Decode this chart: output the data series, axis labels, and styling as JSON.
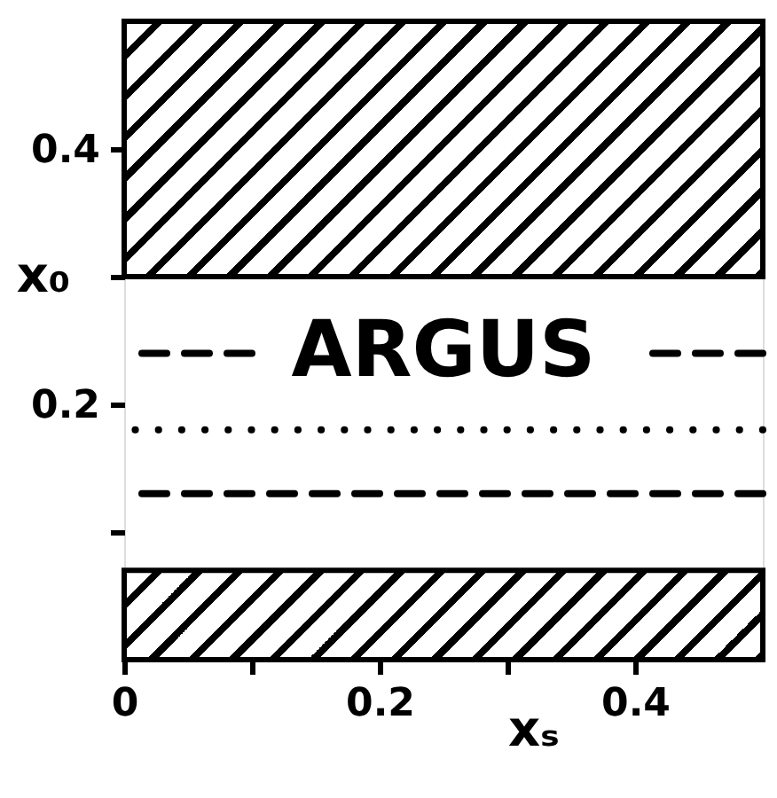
{
  "chart_data": {
    "type": "line",
    "xlabel": "xₛ",
    "ylabel": "x₀",
    "xlim": [
      0,
      0.5
    ],
    "ylim": [
      0,
      0.5
    ],
    "xticks": [
      0,
      {
        "value": 0.1,
        "label": null
      },
      0.2,
      {
        "value": 0.3,
        "label": null
      },
      0.4
    ],
    "yticks": [
      {
        "value": 0.1,
        "label": null
      },
      0.2,
      {
        "value": 0.3,
        "label": null
      },
      0.4
    ],
    "bands": [
      {
        "axis": "y",
        "from": 0.3,
        "to": 0.5,
        "color": "#000000"
      },
      {
        "axis": "y",
        "from": 0,
        "to": 0.07,
        "color": "#000000"
      }
    ],
    "ref_lines": [
      {
        "axis": "y",
        "value": 0.24,
        "label": "ARGUS",
        "line_style": "dashed",
        "color": "#000000"
      },
      {
        "axis": "y",
        "value": 0.18,
        "line_style": "dotted",
        "color": "#000000"
      },
      {
        "axis": "y",
        "value": 0.13,
        "line_style": "dashed",
        "color": "#000000"
      }
    ]
  }
}
